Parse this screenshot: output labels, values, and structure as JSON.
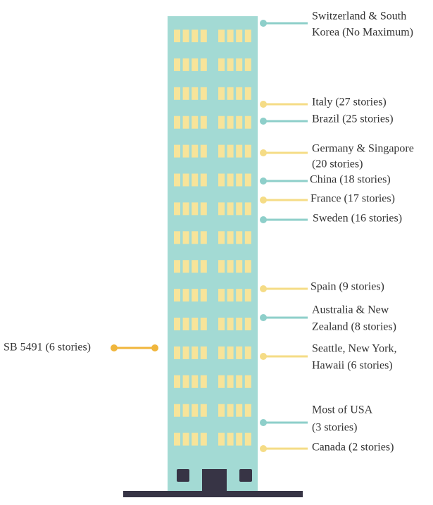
{
  "labels": [
    {
      "lines": [
        "Switzerland & South",
        "Korea (No Maximum)"
      ],
      "color": "#8ecfca"
    },
    {
      "lines": [
        "Italy (27 stories)"
      ],
      "color": "#f5dc86"
    },
    {
      "lines": [
        "Brazil (25 stories)"
      ],
      "color": "#8ecfca"
    },
    {
      "lines": [
        "Germany & Singapore",
        "(20 stories)"
      ],
      "color": "#f5dc86"
    },
    {
      "lines": [
        "China (18 stories)"
      ],
      "color": "#8ecfca"
    },
    {
      "lines": [
        "France (17 stories)"
      ],
      "color": "#f5dc86"
    },
    {
      "lines": [
        "Sweden (16 stories)"
      ],
      "color": "#8ecfca"
    },
    {
      "lines": [
        "Spain (9 stories)"
      ],
      "color": "#f5dc86"
    },
    {
      "lines": [
        "Australia & New",
        "Zealand (8 stories)"
      ],
      "color": "#8ecfca"
    },
    {
      "lines": [
        "Seattle, New York,",
        "Hawaii (6 stories)"
      ],
      "color": "#f5dc86"
    },
    {
      "lines": [
        "Most of USA",
        "(3 stories)"
      ],
      "color": "#8ecfca"
    },
    {
      "lines": [
        "Canada (2 stories)"
      ],
      "color": "#f5dc86"
    }
  ],
  "highlight": {
    "text": "SB 5491 (6 stories)",
    "color": "#f0b63c"
  }
}
